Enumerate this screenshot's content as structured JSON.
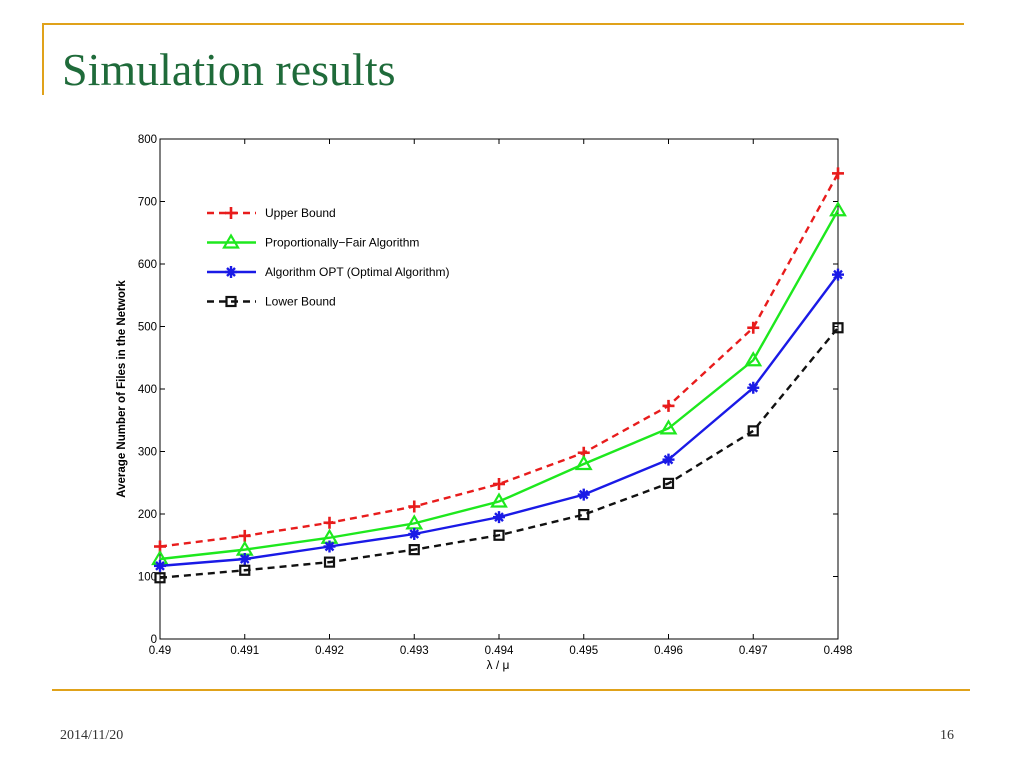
{
  "slide": {
    "title": "Simulation results",
    "footer_date": "2014/11/20",
    "page_number": "16"
  },
  "colors": {
    "rule": "#e0a21a",
    "title": "#1f6b3a"
  },
  "chart_data": {
    "type": "line",
    "xlabel": "λ / μ",
    "ylabel": "Average Number of Files in the Network",
    "xlim": [
      0.49,
      0.498
    ],
    "ylim": [
      0,
      800
    ],
    "x": [
      0.49,
      0.491,
      0.492,
      0.493,
      0.494,
      0.495,
      0.496,
      0.497,
      0.498
    ],
    "x_tick_labels": [
      "0.49",
      "0.491",
      "0.492",
      "0.493",
      "0.494",
      "0.495",
      "0.496",
      "0.497",
      "0.498"
    ],
    "y_ticks": [
      0,
      100,
      200,
      300,
      400,
      500,
      600,
      700,
      800
    ],
    "grid": false,
    "legend_position": "top-left",
    "series": [
      {
        "name": "Upper Bound",
        "color": "#e81c1c",
        "line_style": "dashed",
        "marker": "plus",
        "values": [
          148,
          165,
          186,
          212,
          248,
          298,
          373,
          498,
          745
        ]
      },
      {
        "name": "Proportionally−Fair Algorithm",
        "color": "#1ee81e",
        "line_style": "solid",
        "marker": "triangle",
        "values": [
          128,
          143,
          162,
          185,
          220,
          280,
          337,
          446,
          686
        ]
      },
      {
        "name": "Algorithm OPT (Optimal Algorithm)",
        "color": "#1a1ae6",
        "line_style": "solid",
        "marker": "star",
        "values": [
          117,
          128,
          148,
          168,
          195,
          231,
          287,
          402,
          583
        ]
      },
      {
        "name": "Lower Bound",
        "color": "#111111",
        "line_style": "dashed",
        "marker": "square",
        "values": [
          98,
          110,
          123,
          143,
          166,
          199,
          249,
          333,
          498
        ]
      }
    ]
  }
}
